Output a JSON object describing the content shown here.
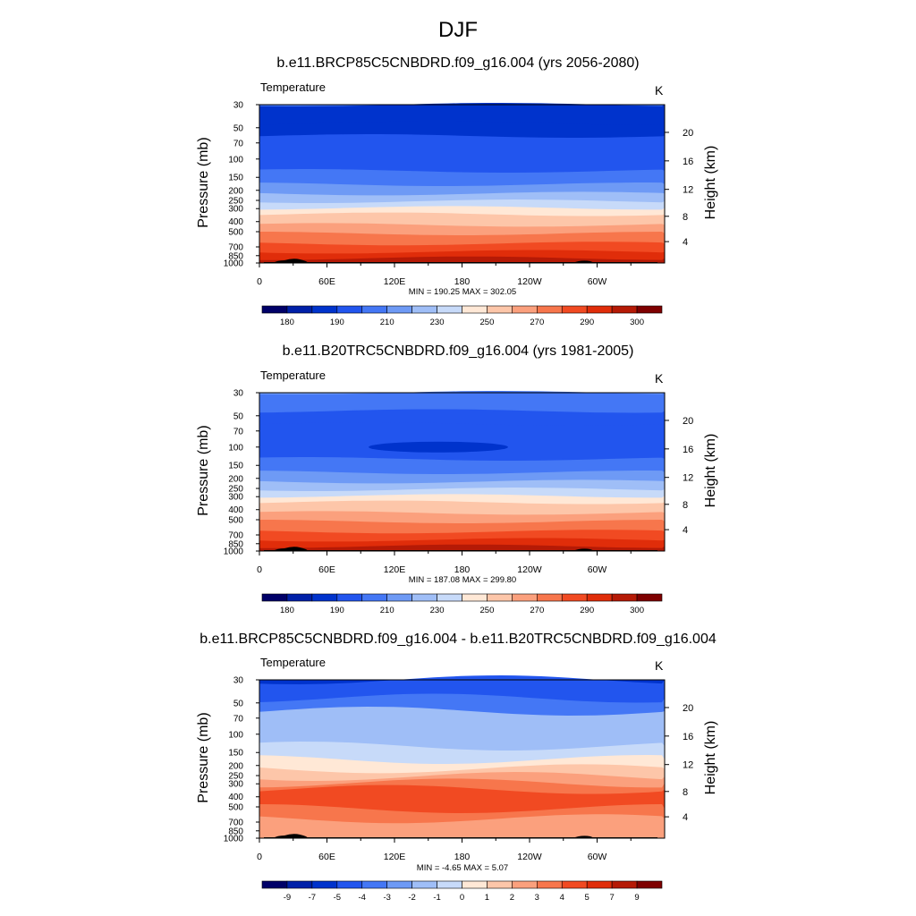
{
  "figure": {
    "title": "DJF"
  },
  "colors": [
    "#000068",
    "#0020a8",
    "#0033cc",
    "#2255ee",
    "#4477f5",
    "#6e9af5",
    "#9fbef7",
    "#c7daf9",
    "#ffe8d6",
    "#fdc6a9",
    "#fba07d",
    "#f7764c",
    "#f14a22",
    "#e02d0a",
    "#b51a06",
    "#7e0000"
  ],
  "chart_data": [
    {
      "type": "heatmap",
      "title": "b.e11.BRCP85C5CNBDRD.f09_g16.004 (yrs 2056-2080)",
      "variable": "Temperature",
      "units": "K",
      "ylabel": "Pressure (mb)",
      "ylabel_right": "Height (km)",
      "x_ticks": [
        "0",
        "60E",
        "120E",
        "180",
        "120W",
        "60W"
      ],
      "y_ticks": [
        "30",
        "50",
        "70",
        "100",
        "150",
        "200",
        "250",
        "300",
        "400",
        "500",
        "700",
        "850",
        "1000"
      ],
      "y_right_ticks": [
        "20",
        "16",
        "12",
        "8",
        "4"
      ],
      "stats": "MIN = 190.25  MAX = 302.05",
      "colorbar_labels": [
        "180",
        "190",
        "210",
        "230",
        "250",
        "270",
        "290",
        "300"
      ],
      "level_colors": [
        4,
        2,
        2,
        3,
        4,
        5,
        6,
        7,
        8,
        9,
        10,
        11,
        12,
        13,
        14
      ]
    },
    {
      "type": "heatmap",
      "title": "b.e11.B20TRC5CNBDRD.f09_g16.004 (yrs 1981-2005)",
      "variable": "Temperature",
      "units": "K",
      "ylabel": "Pressure (mb)",
      "ylabel_right": "Height (km)",
      "x_ticks": [
        "0",
        "60E",
        "120E",
        "180",
        "120W",
        "60W"
      ],
      "y_ticks": [
        "30",
        "50",
        "70",
        "100",
        "150",
        "200",
        "250",
        "300",
        "400",
        "500",
        "700",
        "850",
        "1000"
      ],
      "y_right_ticks": [
        "20",
        "16",
        "12",
        "8",
        "4"
      ],
      "stats": "MIN = 187.08  MAX = 299.80",
      "colorbar_labels": [
        "180",
        "190",
        "210",
        "230",
        "250",
        "270",
        "290",
        "300"
      ],
      "level_colors": [
        5,
        4,
        3,
        3,
        4,
        5,
        6,
        7,
        8,
        9,
        10,
        11,
        12,
        13,
        14
      ]
    },
    {
      "type": "heatmap",
      "title": "b.e11.BRCP85C5CNBDRD.f09_g16.004 - b.e11.B20TRC5CNBDRD.f09_g16.004",
      "variable": "Temperature",
      "units": "K",
      "ylabel": "Pressure (mb)",
      "ylabel_right": "Height (km)",
      "x_ticks": [
        "0",
        "60E",
        "120E",
        "180",
        "120W",
        "60W"
      ],
      "y_ticks": [
        "30",
        "50",
        "70",
        "100",
        "150",
        "200",
        "250",
        "300",
        "400",
        "500",
        "700",
        "850",
        "1000"
      ],
      "y_right_ticks": [
        "20",
        "16",
        "12",
        "8",
        "4"
      ],
      "stats": "MIN =  -4.65  MAX =   5.07",
      "colorbar_labels": [
        "-9",
        "-7",
        "-5",
        "-4",
        "-3",
        "-2",
        "-1",
        "0",
        "1",
        "2",
        "3",
        "4",
        "5",
        "7",
        "9"
      ],
      "level_colors": [
        2,
        3,
        4,
        6,
        7,
        8,
        9,
        10,
        11,
        12,
        12,
        11,
        10,
        10,
        10
      ]
    }
  ]
}
